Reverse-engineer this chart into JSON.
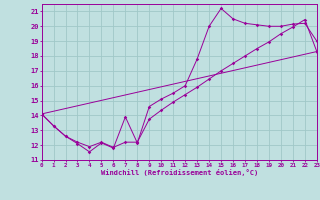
{
  "xlabel": "Windchill (Refroidissement éolien,°C)",
  "bg_color": "#c0e0e0",
  "grid_color": "#a0c8c8",
  "line_color": "#990099",
  "xlim": [
    0,
    23
  ],
  "ylim": [
    11,
    21.5
  ],
  "yticks": [
    11,
    12,
    13,
    14,
    15,
    16,
    17,
    18,
    19,
    20,
    21
  ],
  "xticks": [
    0,
    1,
    2,
    3,
    4,
    5,
    6,
    7,
    8,
    9,
    10,
    11,
    12,
    13,
    14,
    15,
    16,
    17,
    18,
    19,
    20,
    21,
    22,
    23
  ],
  "line1_x": [
    0,
    1,
    2,
    3,
    4,
    5,
    6,
    7,
    8,
    9,
    10,
    11,
    12,
    13,
    14,
    15,
    16,
    17,
    18,
    19,
    20,
    21,
    22,
    23
  ],
  "line1_y": [
    14.1,
    13.3,
    12.6,
    12.1,
    11.55,
    12.15,
    11.8,
    13.9,
    12.15,
    14.6,
    15.1,
    15.5,
    16.0,
    17.8,
    20.0,
    21.2,
    20.5,
    20.2,
    20.1,
    20.0,
    20.0,
    20.15,
    20.2,
    19.0
  ],
  "line2_x": [
    0,
    1,
    2,
    3,
    4,
    5,
    6,
    7,
    8,
    9,
    10,
    11,
    12,
    13,
    14,
    15,
    16,
    17,
    18,
    19,
    20,
    21,
    22,
    23
  ],
  "line2_y": [
    14.1,
    13.3,
    12.6,
    12.2,
    11.9,
    12.2,
    11.85,
    12.2,
    12.2,
    13.75,
    14.35,
    14.9,
    15.4,
    15.9,
    16.45,
    17.0,
    17.5,
    18.0,
    18.5,
    18.95,
    19.5,
    19.95,
    20.45,
    18.3
  ],
  "line3_x": [
    0,
    23
  ],
  "line3_y": [
    14.1,
    18.3
  ]
}
